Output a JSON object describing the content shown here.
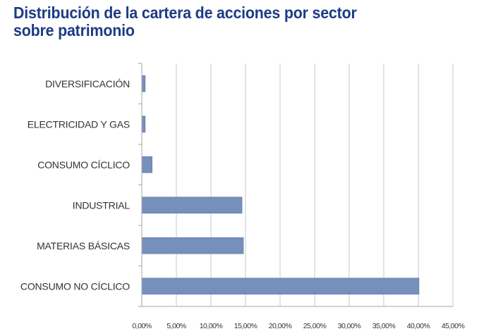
{
  "chart_data": {
    "type": "bar",
    "orientation": "horizontal",
    "title_lines": [
      "Distribución de la cartera de acciones por sector",
      "sobre patrimonio"
    ],
    "categories": [
      "DIVERSIFICACIÓN",
      "ELECTRICIDAD Y GAS",
      "CONSUMO CÍCLICO",
      "INDUSTRIAL",
      "MATERIAS BÁSICAS",
      "CONSUMO NO CÍCLICO"
    ],
    "values": [
      0.5,
      0.5,
      1.5,
      14.5,
      14.7,
      40.1
    ],
    "xlim": [
      0,
      45
    ],
    "xticks": [
      0,
      5,
      10,
      15,
      20,
      25,
      30,
      35,
      40,
      45
    ],
    "xtick_labels": [
      "0,00%",
      "5,00%",
      "10,00%",
      "15,00%",
      "20,00%",
      "25,00%",
      "30,00%",
      "35,00%",
      "40,00%",
      "45,00%"
    ],
    "grid": "vertical",
    "legend": "none",
    "colors": {
      "bar": "#7490bb",
      "bar_edge": "#5f7aa6",
      "grid": "#c9c9c9",
      "axis": "#a6a6a6",
      "title": "#1d3b86",
      "text": "#333333"
    }
  }
}
